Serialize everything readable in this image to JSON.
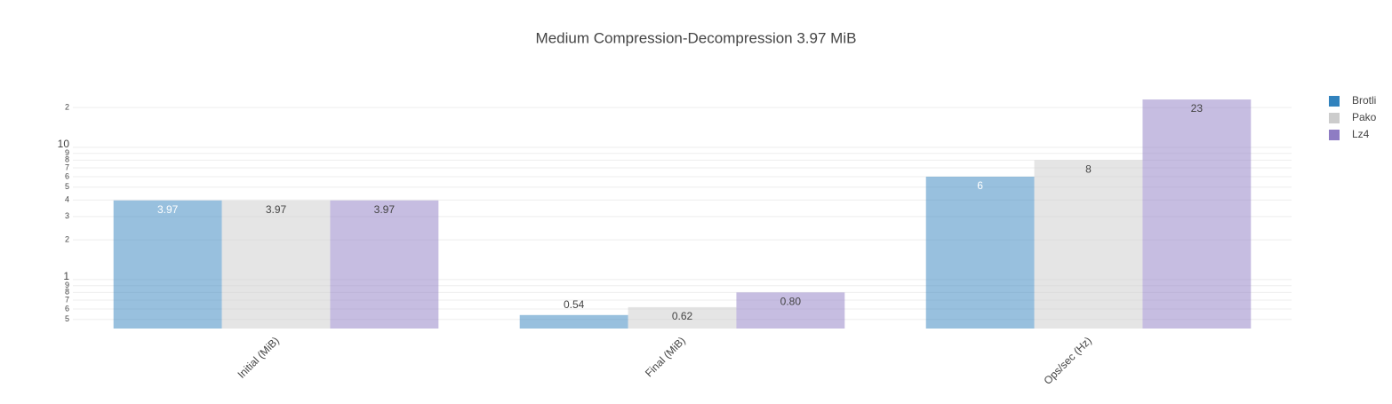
{
  "chart_data": {
    "type": "bar",
    "title": "Medium Compression-Decompression 3.97 MiB",
    "categories": [
      "Initial (MiB)",
      "Final (MiB)",
      "Ops/sec (Hz)"
    ],
    "series": [
      {
        "name": "Brotli",
        "color": "#3182bd",
        "values": [
          3.97,
          0.54,
          6
        ]
      },
      {
        "name": "Pako",
        "color": "#cccccc",
        "values": [
          3.97,
          0.62,
          8
        ]
      },
      {
        "name": "Lz4",
        "color": "#8e7cc3",
        "values": [
          3.97,
          0.8,
          23
        ],
        "value_labels": [
          "3.97",
          "0.80",
          "23"
        ]
      }
    ],
    "log_y": true,
    "ylim": [
      0.427,
      27.7
    ],
    "yticks": [
      {
        "value": 0.5,
        "label": "5"
      },
      {
        "value": 0.6,
        "label": "6"
      },
      {
        "value": 0.7,
        "label": "7"
      },
      {
        "value": 0.8,
        "label": "8"
      },
      {
        "value": 0.9,
        "label": "9"
      },
      1,
      2,
      3,
      4,
      5,
      6,
      7,
      8,
      9,
      10,
      {
        "value": 20,
        "label": "2"
      }
    ],
    "grid": true,
    "bar_opacity": 0.5,
    "legend": "top-right"
  }
}
